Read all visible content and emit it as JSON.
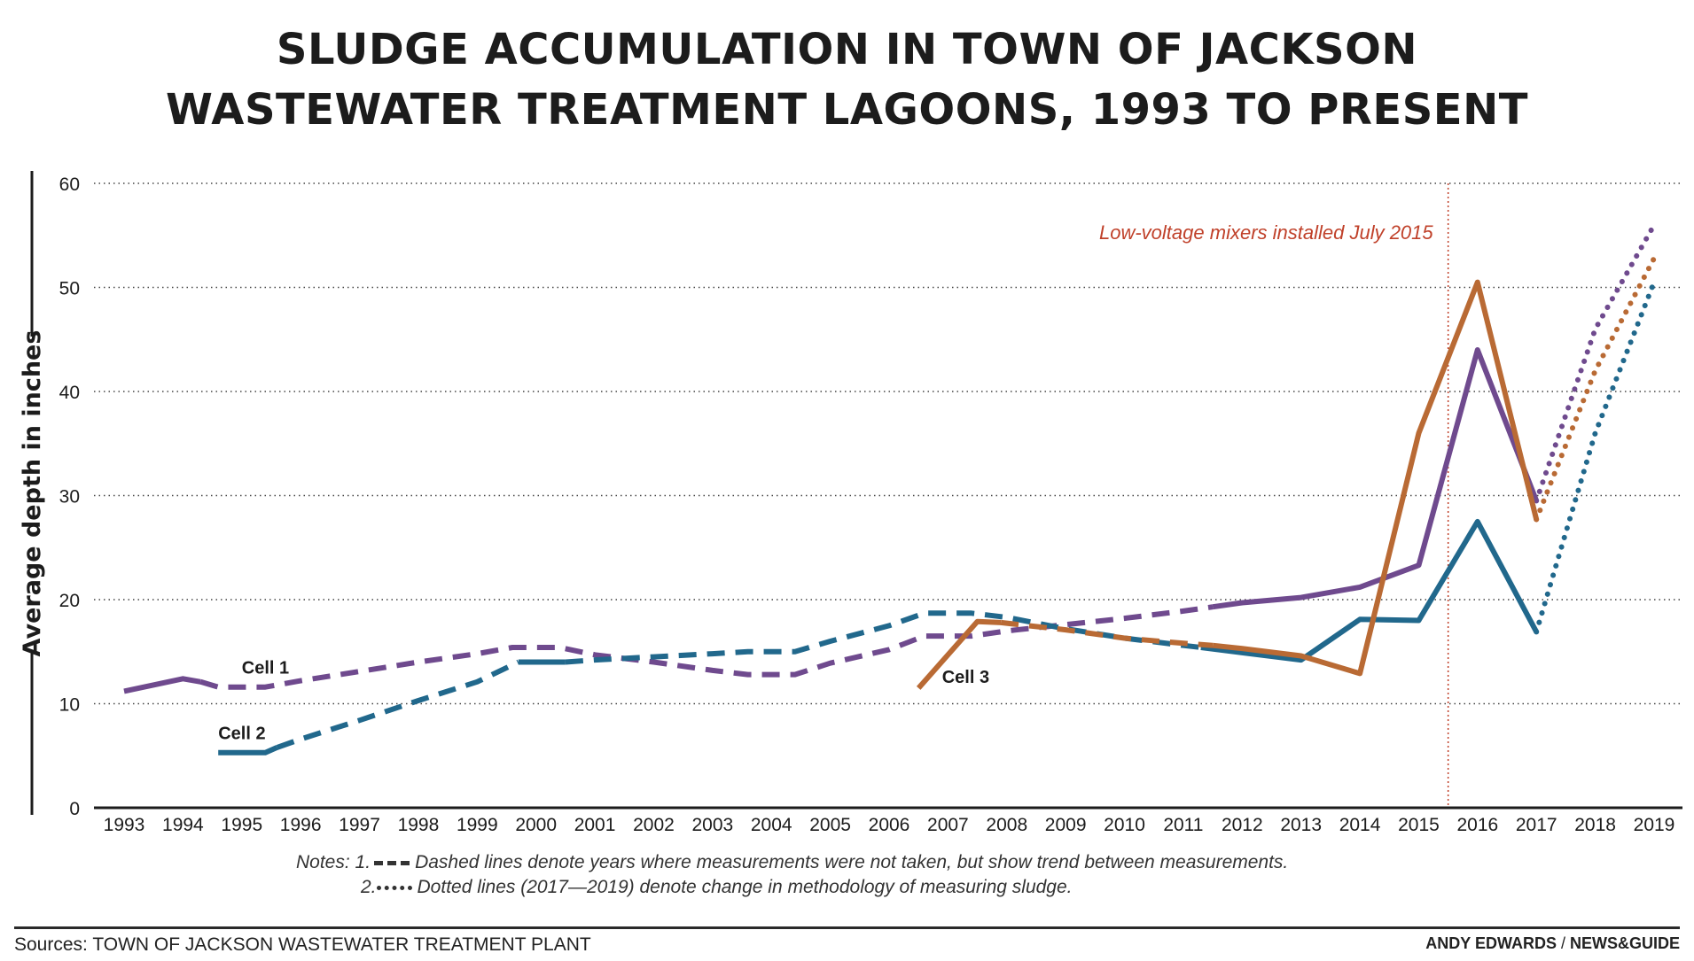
{
  "chart_data": {
    "type": "line",
    "title": "SLUDGE ACCUMULATION IN TOWN OF JACKSON WASTEWATER TREATMENT LAGOONS, 1993 TO PRESENT",
    "title_lines": [
      "SLUDGE ACCUMULATION IN TOWN OF JACKSON",
      "WASTEWATER TREATMENT LAGOONS, 1993 TO PRESENT"
    ],
    "ylabel": "Average depth in inches",
    "xlabel": "",
    "ylim": [
      0,
      60
    ],
    "yticks": [
      "0",
      "10",
      "20",
      "30",
      "40",
      "50",
      "60"
    ],
    "categories": [
      "1993",
      "1994",
      "1995",
      "1996",
      "1997",
      "1998",
      "1999",
      "2000",
      "2001",
      "2002",
      "2003",
      "2004",
      "2005",
      "2006",
      "2007",
      "2008",
      "2009",
      "2010",
      "2011",
      "2012",
      "2013",
      "2014",
      "2015",
      "2016",
      "2017",
      "2018",
      "2019"
    ],
    "grid": "horizontal dotted",
    "annotation": {
      "text": "Low-voltage mixers installed July 2015",
      "x": 2015.5,
      "color": "#c0412a"
    },
    "series": [
      {
        "name": "Cell 1",
        "color": "#6f4a8e",
        "label_at": [
          1995,
          12.9
        ],
        "segments": [
          {
            "style": "solid",
            "points": [
              [
                1993,
                11.2
              ],
              [
                1994,
                12.4
              ],
              [
                1994.3,
                12.1
              ]
            ]
          },
          {
            "style": "dashed",
            "points": [
              [
                1994.3,
                12.1
              ],
              [
                1994.6,
                11.6
              ],
              [
                1995.4,
                11.6
              ],
              [
                1996,
                12.2
              ],
              [
                1997,
                13.1
              ],
              [
                1998,
                14.0
              ],
              [
                1999,
                14.8
              ],
              [
                1999.6,
                15.4
              ],
              [
                2000.4,
                15.4
              ],
              [
                2001,
                14.7
              ],
              [
                2002,
                14.0
              ],
              [
                2003,
                13.2
              ],
              [
                2003.6,
                12.8
              ],
              [
                2004.4,
                12.8
              ],
              [
                2005,
                13.9
              ],
              [
                2006,
                15.2
              ],
              [
                2006.6,
                16.5
              ],
              [
                2007.4,
                16.5
              ],
              [
                2008,
                17.0
              ],
              [
                2009,
                17.6
              ],
              [
                2010,
                18.2
              ],
              [
                2011,
                18.9
              ],
              [
                2011.5,
                19.3
              ]
            ]
          },
          {
            "style": "solid",
            "points": [
              [
                2011.5,
                19.3
              ],
              [
                2012,
                19.7
              ],
              [
                2013,
                20.2
              ],
              [
                2014,
                21.2
              ],
              [
                2015,
                23.3
              ],
              [
                2016,
                44.0
              ],
              [
                2017,
                29.5
              ]
            ]
          },
          {
            "style": "dotted",
            "points": [
              [
                2017,
                29.5
              ],
              [
                2018,
                46.0
              ],
              [
                2019,
                56.0
              ]
            ]
          }
        ]
      },
      {
        "name": "Cell 2",
        "color": "#21688c",
        "label_at": [
          1994.6,
          6.6
        ],
        "segments": [
          {
            "style": "solid",
            "points": [
              [
                1994.6,
                5.3
              ],
              [
                1995.4,
                5.3
              ],
              [
                1995.6,
                5.8
              ]
            ]
          },
          {
            "style": "dashed",
            "points": [
              [
                1995.6,
                5.8
              ],
              [
                1996,
                6.6
              ],
              [
                1997,
                8.4
              ],
              [
                1998,
                10.3
              ],
              [
                1999,
                12.1
              ],
              [
                1999.7,
                14.0
              ]
            ]
          },
          {
            "style": "solid",
            "points": [
              [
                1999.7,
                14.0
              ],
              [
                2000.5,
                14.0
              ]
            ]
          },
          {
            "style": "dashed",
            "points": [
              [
                2000.5,
                14.0
              ],
              [
                2001,
                14.2
              ],
              [
                2002,
                14.5
              ],
              [
                2003,
                14.8
              ],
              [
                2003.6,
                15.0
              ],
              [
                2004.4,
                15.0
              ],
              [
                2005,
                16.0
              ],
              [
                2006,
                17.5
              ],
              [
                2006.6,
                18.7
              ],
              [
                2007.4,
                18.7
              ],
              [
                2008,
                18.3
              ],
              [
                2009,
                17.2
              ],
              [
                2010,
                16.3
              ],
              [
                2011,
                15.6
              ],
              [
                2011.3,
                15.4
              ]
            ]
          },
          {
            "style": "solid",
            "points": [
              [
                2011.3,
                15.4
              ],
              [
                2012,
                14.9
              ],
              [
                2013,
                14.2
              ],
              [
                2014,
                18.1
              ],
              [
                2015,
                18.0
              ],
              [
                2016,
                27.5
              ],
              [
                2017,
                16.9
              ]
            ]
          },
          {
            "style": "dotted",
            "points": [
              [
                2017,
                16.9
              ],
              [
                2018,
                36.0
              ],
              [
                2019,
                50.5
              ]
            ]
          }
        ]
      },
      {
        "name": "Cell 3",
        "color": "#b96a34",
        "label_at": [
          2006.9,
          12.0
        ],
        "segments": [
          {
            "style": "solid",
            "points": [
              [
                2006.5,
                11.5
              ],
              [
                2007.5,
                17.9
              ],
              [
                2007.9,
                17.8
              ]
            ]
          },
          {
            "style": "dashed",
            "points": [
              [
                2007.9,
                17.8
              ],
              [
                2009,
                17.1
              ],
              [
                2010,
                16.3
              ],
              [
                2011,
                15.8
              ],
              [
                2011.5,
                15.6
              ]
            ]
          },
          {
            "style": "solid",
            "points": [
              [
                2011.5,
                15.6
              ],
              [
                2012,
                15.3
              ],
              [
                2013,
                14.6
              ],
              [
                2014,
                12.9
              ],
              [
                2015,
                36.0
              ],
              [
                2016,
                50.5
              ],
              [
                2017,
                27.7
              ]
            ]
          },
          {
            "style": "dotted",
            "points": [
              [
                2017,
                27.7
              ],
              [
                2018,
                42.0
              ],
              [
                2019,
                52.8
              ]
            ]
          }
        ]
      }
    ]
  },
  "notes": {
    "prefix": "Notes:",
    "note1_num": "1.",
    "note1_text": "Dashed lines denote years where measurements were not taken, but show trend between measurements.",
    "note2_num": "2.",
    "note2_text": "Dotted lines (2017—2019) denote change in methodology of measuring sludge."
  },
  "footer": {
    "sources": "Sources: TOWN OF JACKSON WASTEWATER TREATMENT PLANT",
    "author": "ANDY EDWARDS",
    "separator": " / ",
    "org": "NEWS&GUIDE"
  }
}
